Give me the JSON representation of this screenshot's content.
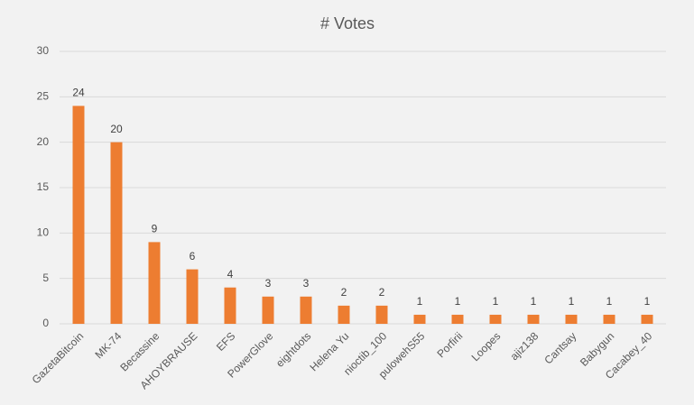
{
  "chart_data": {
    "type": "bar",
    "title": "# Votes",
    "categories": [
      "GazetaBitcoin",
      "MK-74",
      "Becassine",
      "AHOYBRAUSE",
      "EFS",
      "PowerGlove",
      "eightdots",
      "Helena Yu",
      "nioctib_100",
      "pulowehS55",
      "Porfirii",
      "Loopes",
      "ajiz138",
      "Cantsay",
      "Babygun",
      "Cacabey_40"
    ],
    "values": [
      24,
      20,
      9,
      6,
      4,
      3,
      3,
      2,
      2,
      1,
      1,
      1,
      1,
      1,
      1,
      1
    ],
    "color": "#ed7d31",
    "ylim": [
      0,
      30
    ],
    "yticks": [
      0,
      5,
      10,
      15,
      20,
      25,
      30
    ],
    "grid": true
  }
}
